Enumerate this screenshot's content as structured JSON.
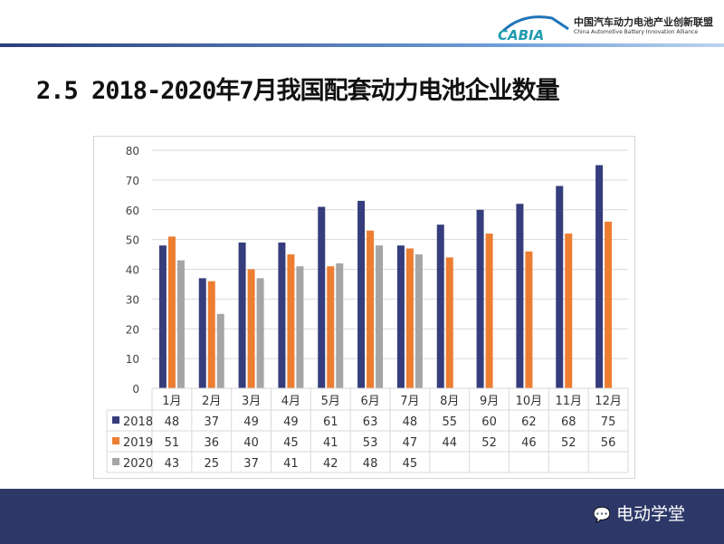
{
  "header": {
    "logo_text": "CABIA",
    "org_cn": "中国汽车动力电池产业创新联盟",
    "org_en": "China Automotive Battery Innovation Alliance"
  },
  "title": "2.5 2018-2020年7月我国配套动力电池企业数量",
  "watermark": "电动学堂",
  "chart_data": {
    "type": "bar",
    "categories": [
      "1月",
      "2月",
      "3月",
      "4月",
      "5月",
      "6月",
      "7月",
      "8月",
      "9月",
      "10月",
      "11月",
      "12月"
    ],
    "series": [
      {
        "name": "2018",
        "color": "#363d7c",
        "values": [
          48,
          37,
          49,
          49,
          61,
          63,
          48,
          55,
          60,
          62,
          68,
          75
        ]
      },
      {
        "name": "2019",
        "color": "#ed7d31",
        "values": [
          51,
          36,
          40,
          45,
          41,
          53,
          47,
          44,
          52,
          46,
          52,
          56
        ]
      },
      {
        "name": "2020",
        "color": "#a5a5a5",
        "values": [
          43,
          25,
          37,
          41,
          42,
          48,
          45,
          null,
          null,
          null,
          null,
          null
        ]
      }
    ],
    "ylim": [
      0,
      80
    ],
    "yticks": [
      0,
      10,
      20,
      30,
      40,
      50,
      60,
      70,
      80
    ],
    "grid": true,
    "legend": "data-table"
  }
}
